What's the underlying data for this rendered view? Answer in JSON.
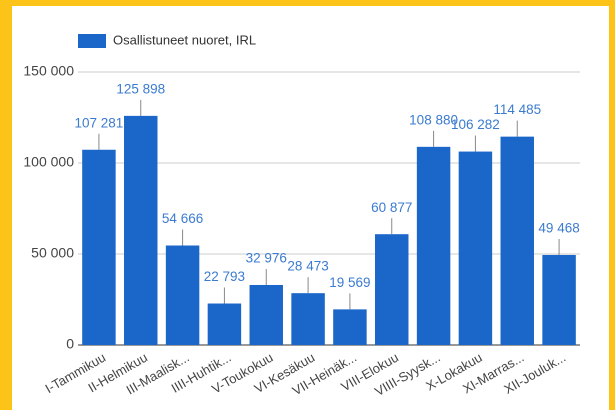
{
  "chart_data": {
    "type": "bar",
    "legend_label": "Osallistuneet nuoret, IRL",
    "color": "#1a66c9",
    "categories": [
      "I-Tammikuu",
      "II-Helmikuu",
      "III-Maalisk...",
      "IIII-Huhtik...",
      "V-Toukokuu",
      "VI-Kesäkuu",
      "VII-Heinäk...",
      "VIII-Elokuu",
      "VIIII-Syysk...",
      "X-Lokakuu",
      "XI-Marras...",
      "XII-Jouluk..."
    ],
    "values": [
      107281,
      125898,
      54666,
      22793,
      32976,
      28473,
      19569,
      60877,
      108880,
      106282,
      114485,
      49468
    ],
    "value_labels": [
      "107 281",
      "125 898",
      "54 666",
      "22 793",
      "32 976",
      "28 473",
      "19 569",
      "60 877",
      "108 880",
      "106 282",
      "114 485",
      "49 468"
    ],
    "ylim": [
      0,
      150000
    ],
    "yticks": [
      {
        "value": 0,
        "label": "0"
      },
      {
        "value": 50000,
        "label": "50 000"
      },
      {
        "value": 100000,
        "label": "100 000"
      },
      {
        "value": 150000,
        "label": "150 000"
      }
    ],
    "grid": true
  }
}
